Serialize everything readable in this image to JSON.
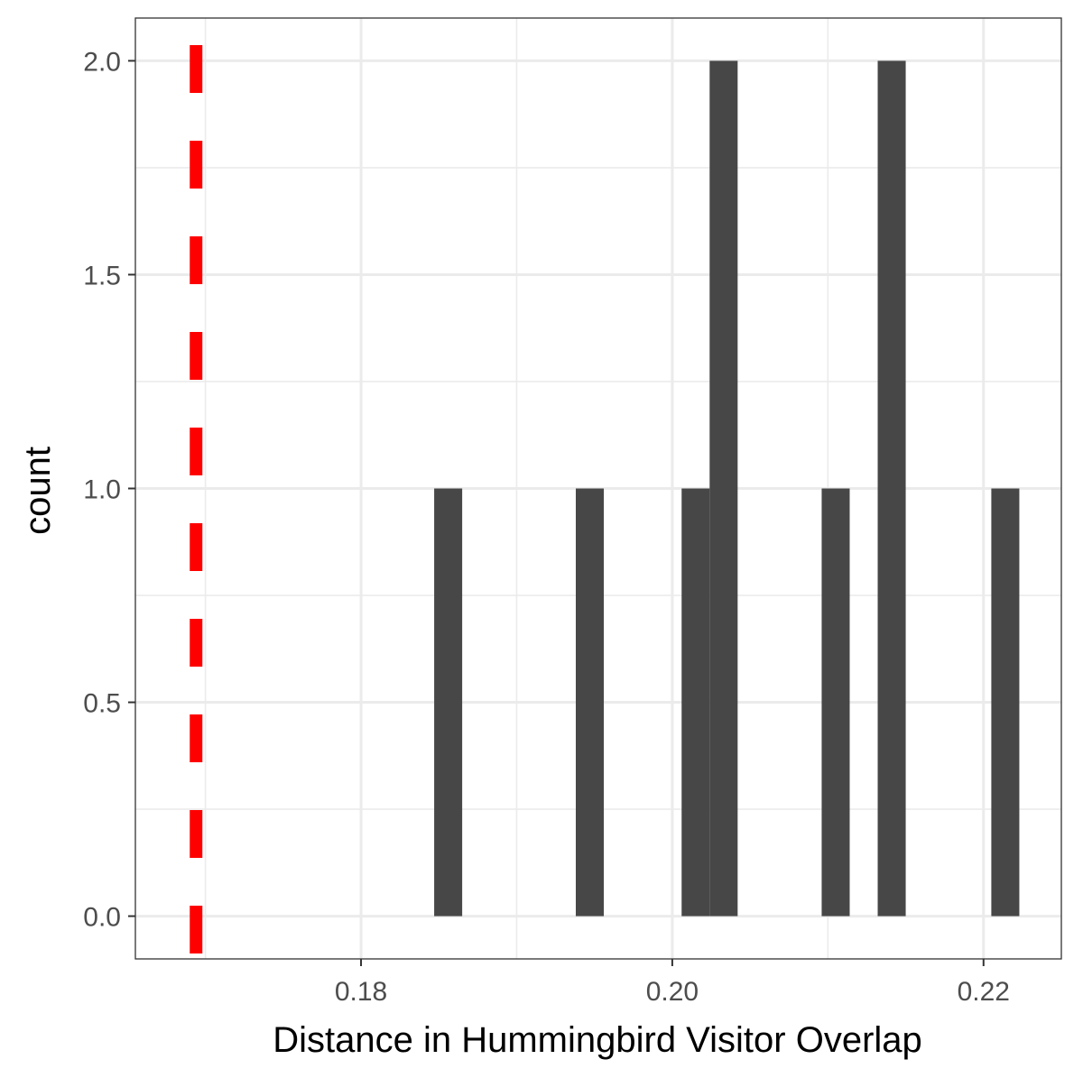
{
  "chart_data": {
    "type": "bar",
    "subtype": "histogram",
    "xlabel": "Distance in Hummingbird Visitor Overlap",
    "ylabel": "count",
    "xlim": [
      0.1655,
      0.225
    ],
    "ylim": [
      -0.1,
      2.1
    ],
    "x_ticks": [
      {
        "value": 0.18,
        "label": "0.18"
      },
      {
        "value": 0.2,
        "label": "0.20"
      },
      {
        "value": 0.22,
        "label": "0.22"
      }
    ],
    "x_minor_ticks": [
      0.17,
      0.19,
      0.21
    ],
    "y_ticks": [
      {
        "value": 0.0,
        "label": "0.0"
      },
      {
        "value": 0.5,
        "label": "0.5"
      },
      {
        "value": 1.0,
        "label": "1.0"
      },
      {
        "value": 1.5,
        "label": "1.5"
      },
      {
        "value": 2.0,
        "label": "2.0"
      }
    ],
    "y_minor_ticks": [
      0.25,
      0.75,
      1.25,
      1.75
    ],
    "bins": [
      {
        "x0": 0.1847,
        "x1": 0.1865,
        "count": 1
      },
      {
        "x0": 0.1938,
        "x1": 0.1956,
        "count": 1
      },
      {
        "x0": 0.2006,
        "x1": 0.2024,
        "count": 1
      },
      {
        "x0": 0.2024,
        "x1": 0.2042,
        "count": 2
      },
      {
        "x0": 0.2096,
        "x1": 0.2114,
        "count": 1
      },
      {
        "x0": 0.2132,
        "x1": 0.215,
        "count": 2
      },
      {
        "x0": 0.2205,
        "x1": 0.2223,
        "count": 1
      }
    ],
    "reference_line": {
      "x": 0.1694,
      "color": "#ff0000",
      "style": "dashed"
    },
    "bar_color": "#474747",
    "grid": true,
    "legend": "none"
  }
}
